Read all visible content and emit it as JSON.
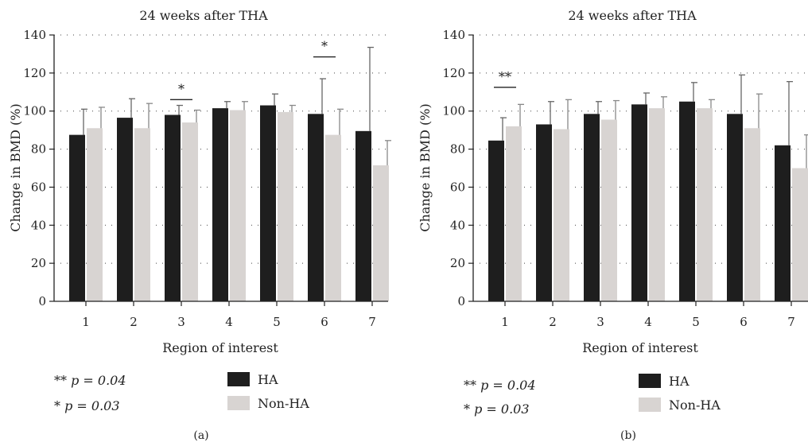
{
  "colors": {
    "ha": "#1e1e1e",
    "non_ha": "#d8d4d2",
    "axis": "#222222",
    "grid": "#444444"
  },
  "chart_data": [
    {
      "type": "bar",
      "panel_label": "(a)",
      "title": "24 weeks after THA",
      "xlabel": "Region of interest",
      "ylabel": "Change in BMD (%)",
      "ylim": [
        0,
        140
      ],
      "yticks": [
        0,
        20,
        40,
        60,
        80,
        100,
        120,
        140
      ],
      "grid": "dotted horizontal",
      "categories": [
        "1",
        "2",
        "3",
        "4",
        "5",
        "6",
        "7"
      ],
      "series": [
        {
          "name": "HA",
          "values": [
            87.5,
            96.5,
            98,
            101.5,
            103,
            98.5,
            89.5
          ],
          "error": [
            13.5,
            10,
            5,
            3.5,
            6,
            18.5,
            44
          ]
        },
        {
          "name": "Non-HA",
          "values": [
            91,
            91,
            94,
            100.5,
            99.5,
            87.5,
            71.5
          ],
          "error": [
            11,
            13,
            6.5,
            4.5,
            3.5,
            13.5,
            13
          ]
        }
      ],
      "significance": [
        {
          "category": "3",
          "mark": "*",
          "level": 106
        },
        {
          "category": "6",
          "mark": "*",
          "level": 128.5
        }
      ],
      "notes": [
        {
          "stars": "**",
          "text": "p = 0.04"
        },
        {
          "stars": "*",
          "text": "p = 0.03"
        }
      ],
      "legend": {
        "placement": "bottom",
        "entries": [
          "HA",
          "Non-HA"
        ]
      }
    },
    {
      "type": "bar",
      "panel_label": "(b)",
      "title": "24 weeks after THA",
      "xlabel": "Region of interest",
      "ylabel": "Change in BMD (%)",
      "ylim": [
        0,
        140
      ],
      "yticks": [
        0,
        20,
        40,
        60,
        80,
        100,
        120,
        140
      ],
      "grid": "dotted horizontal",
      "categories": [
        "1",
        "2",
        "3",
        "4",
        "5",
        "6",
        "7"
      ],
      "series": [
        {
          "name": "HA",
          "values": [
            84.5,
            93,
            98.5,
            103.5,
            105,
            98.5,
            82
          ],
          "error": [
            12,
            12,
            6.5,
            6,
            10,
            20.5,
            33.5
          ]
        },
        {
          "name": "Non-HA",
          "values": [
            92,
            90.5,
            95.5,
            101.5,
            101.5,
            91,
            70
          ],
          "error": [
            11.5,
            15.5,
            10,
            6,
            4.5,
            18,
            17.5
          ]
        }
      ],
      "significance": [
        {
          "category": "1",
          "mark": "**",
          "level": 112.5
        }
      ],
      "notes": [
        {
          "stars": "**",
          "text": "p = 0.04"
        },
        {
          "stars": "*",
          "text": "p = 0.03"
        }
      ],
      "legend": {
        "placement": "bottom",
        "entries": [
          "HA",
          "Non-HA"
        ]
      }
    }
  ]
}
